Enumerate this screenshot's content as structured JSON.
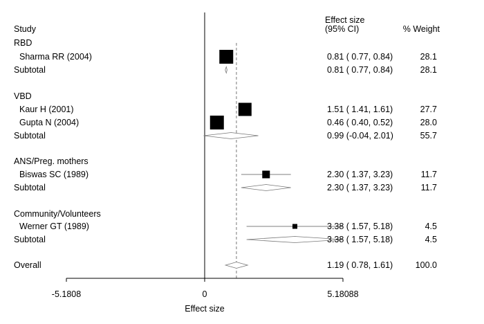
{
  "chart_data": {
    "type": "forest",
    "header": {
      "study": "Study",
      "effect_line1": "Effect size",
      "effect_line2": "(95% CI)",
      "weight": "% Weight"
    },
    "xlabel": "Effect size",
    "xlim": [
      -5.1808,
      5.18088
    ],
    "xticks": [
      "-5.1808",
      "0",
      "5.18088"
    ],
    "overall_reference": 1.19,
    "rows": [
      {
        "kind": "group",
        "label": "RBD"
      },
      {
        "kind": "study",
        "label": "Sharma RR (2004)",
        "es": 0.81,
        "lo": 0.77,
        "hi": 0.84,
        "ci_text": "0.81 ( 0.77, 0.84)",
        "weight": "28.1"
      },
      {
        "kind": "subtotal",
        "label": "Subtotal",
        "es": 0.81,
        "lo": 0.77,
        "hi": 0.84,
        "ci_text": "0.81 ( 0.77, 0.84)",
        "weight": "28.1"
      },
      {
        "kind": "group",
        "label": "VBD"
      },
      {
        "kind": "study",
        "label": "Kaur H (2001)",
        "es": 1.51,
        "lo": 1.41,
        "hi": 1.61,
        "ci_text": "1.51 ( 1.41, 1.61)",
        "weight": "27.7"
      },
      {
        "kind": "study",
        "label": "Gupta N (2004)",
        "es": 0.46,
        "lo": 0.4,
        "hi": 0.52,
        "ci_text": "0.46 ( 0.40, 0.52)",
        "weight": "28.0"
      },
      {
        "kind": "subtotal",
        "label": "Subtotal",
        "es": 0.99,
        "lo": -0.04,
        "hi": 2.01,
        "ci_text": "0.99 (-0.04, 2.01)",
        "weight": "55.7"
      },
      {
        "kind": "group",
        "label": "ANS/Preg. mothers"
      },
      {
        "kind": "study",
        "label": "Biswas SC (1989)",
        "es": 2.3,
        "lo": 1.37,
        "hi": 3.23,
        "ci_text": "2.30 ( 1.37, 3.23)",
        "weight": "11.7"
      },
      {
        "kind": "subtotal",
        "label": "Subtotal",
        "es": 2.3,
        "lo": 1.37,
        "hi": 3.23,
        "ci_text": "2.30 ( 1.37, 3.23)",
        "weight": "11.7"
      },
      {
        "kind": "group",
        "label": "Community/Volunteers"
      },
      {
        "kind": "study",
        "label": "Werner GT (1989)",
        "es": 3.38,
        "lo": 1.57,
        "hi": 5.18,
        "ci_text": "3.38 ( 1.57, 5.18)",
        "weight": "4.5"
      },
      {
        "kind": "subtotal",
        "label": "Subtotal",
        "es": 3.38,
        "lo": 1.57,
        "hi": 5.18,
        "ci_text": "3.38 ( 1.57, 5.18)",
        "weight": "4.5"
      },
      {
        "kind": "overall",
        "label": "Overall",
        "es": 1.19,
        "lo": 0.78,
        "hi": 1.61,
        "ci_text": "1.19 ( 0.78, 1.61)",
        "weight": "100.0"
      }
    ]
  }
}
